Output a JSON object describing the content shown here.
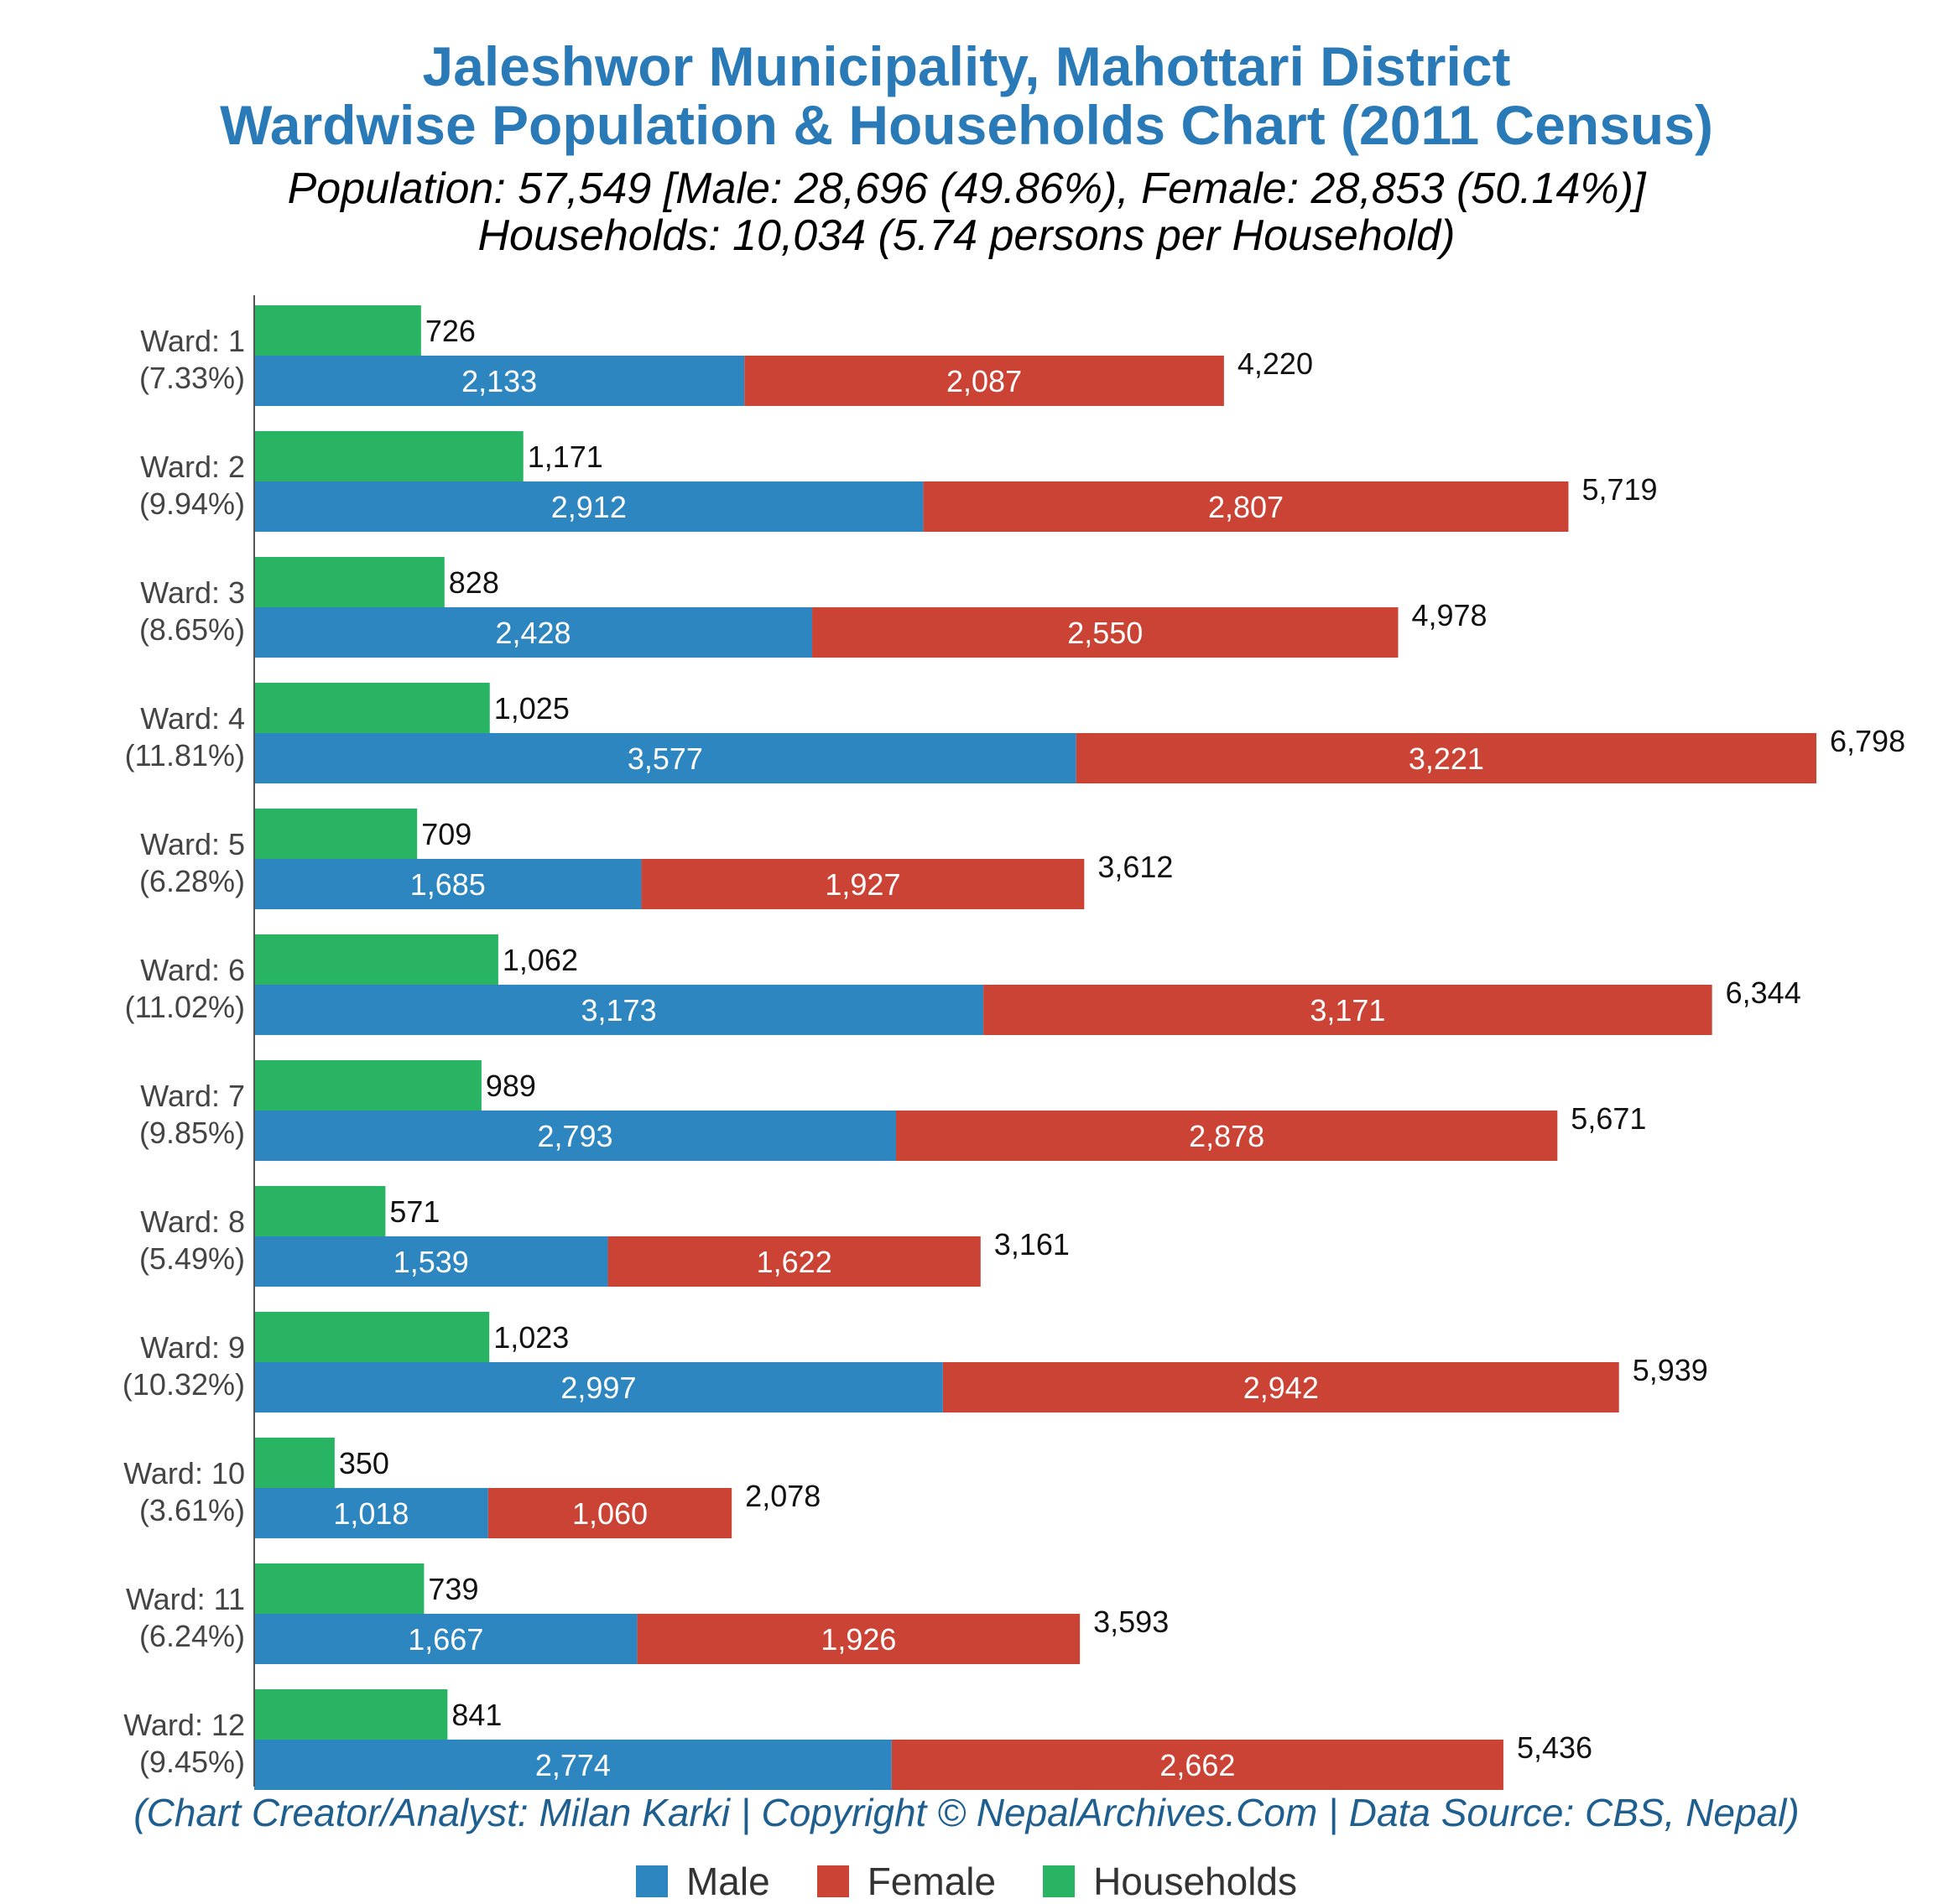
{
  "header": {
    "title_line1": "Jaleshwor Municipality, Mahottari District",
    "title_line2": "Wardwise Population & Households Chart (2011 Census)",
    "subtitle_line1": "Population: 57,549 [Male: 28,696 (49.86%), Female: 28,853 (50.14%)]",
    "subtitle_line2": "Households: 10,034 (5.74 persons per Household)"
  },
  "footer": {
    "credit": "(Chart Creator/Analyst: Milan Karki | Copyright © NepalArchives.Com | Data Source: CBS, Nepal)"
  },
  "colors": {
    "male": "#2e86c1",
    "female": "#cb4335",
    "households": "#28b463",
    "title": "#2a7ab8",
    "credit": "#1f5f8f"
  },
  "chart_data": {
    "type": "bar",
    "orientation": "horizontal",
    "categories": [
      "Ward: 1",
      "Ward: 2",
      "Ward: 3",
      "Ward: 4",
      "Ward: 5",
      "Ward: 6",
      "Ward: 7",
      "Ward: 8",
      "Ward: 9",
      "Ward: 10",
      "Ward: 11",
      "Ward: 12"
    ],
    "category_shares": [
      "(7.33%)",
      "(9.94%)",
      "(8.65%)",
      "(11.81%)",
      "(6.28%)",
      "(11.02%)",
      "(9.85%)",
      "(5.49%)",
      "(10.32%)",
      "(3.61%)",
      "(6.24%)",
      "(9.45%)"
    ],
    "series": [
      {
        "name": "Male",
        "values": [
          2133,
          2912,
          2428,
          3577,
          1685,
          3173,
          2793,
          1539,
          2997,
          1018,
          1667,
          2774
        ]
      },
      {
        "name": "Female",
        "values": [
          2087,
          2807,
          2550,
          3221,
          1927,
          3171,
          2878,
          1622,
          2942,
          1060,
          1926,
          2662
        ]
      },
      {
        "name": "Households",
        "values": [
          726,
          1171,
          828,
          1025,
          709,
          1062,
          989,
          571,
          1023,
          350,
          739,
          841
        ]
      }
    ],
    "totals": [
      4220,
      5719,
      4978,
      6798,
      3612,
      6344,
      5671,
      3161,
      5939,
      2078,
      3593,
      5436
    ],
    "stacked": [
      "Male",
      "Female"
    ],
    "xlim": [
      0,
      7000
    ],
    "grid": false,
    "legend_position": "bottom"
  }
}
